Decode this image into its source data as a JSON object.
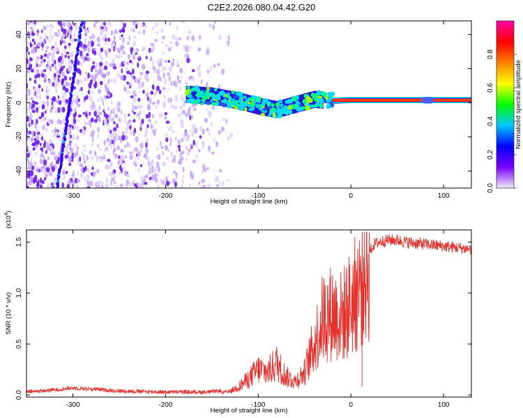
{
  "title": "C2E2.2026.080.04.42.G20",
  "chart_data": [
    {
      "type": "heatmap",
      "xlabel": "Height of straight line (km)",
      "ylabel": "Frequency (Hz)",
      "xlim": [
        -350,
        130
      ],
      "ylim": [
        -50,
        48
      ],
      "x_ticks": [
        -300,
        -200,
        -100,
        0,
        100
      ],
      "x_tick_labels": [
        "-300",
        "-200",
        "-100",
        "0",
        "100"
      ],
      "y_ticks": [
        -40,
        -20,
        0,
        20,
        40
      ],
      "y_tick_labels": [
        "-40",
        "-20",
        "0",
        "20",
        "40"
      ],
      "colorbar": {
        "label": "Normalized spectral amplitude",
        "range": [
          0.0,
          1.0
        ],
        "ticks": [
          0.0,
          0.2,
          0.4,
          0.6,
          0.8
        ],
        "tick_labels": [
          "0.0",
          "0.2",
          "0.4",
          "0.6",
          "0.8"
        ],
        "colors": [
          "#f2eaff",
          "#7b00ff",
          "#0000ff",
          "#00c8ff",
          "#00ff00",
          "#ffff00",
          "#ff8000",
          "#ff0000",
          "#ff00aa"
        ]
      },
      "features": {
        "noise_region_x": [
          -350,
          -140
        ],
        "streak": {
          "x_start": -317,
          "y_start": -50,
          "x_end": -290,
          "y_end": 48
        },
        "signal_trace": [
          {
            "x": -178,
            "y": 5
          },
          {
            "x": -150,
            "y": 4
          },
          {
            "x": -120,
            "y": 1
          },
          {
            "x": -100,
            "y": -2
          },
          {
            "x": -80,
            "y": -4
          },
          {
            "x": -60,
            "y": -1
          },
          {
            "x": -40,
            "y": 2
          },
          {
            "x": -20,
            "y": 1
          },
          {
            "x": 0,
            "y": 1.5
          },
          {
            "x": 50,
            "y": 1.5
          },
          {
            "x": 130,
            "y": 1.5
          }
        ]
      }
    },
    {
      "type": "line",
      "xlabel": "Height of straight line (km)",
      "ylabel": "SNR (10 * v/v)",
      "y_multiplier": "(x10",
      "y_multiplier_exp": "4",
      "y_multiplier_close": ")",
      "xlim": [
        -350,
        130
      ],
      "ylim": [
        -0.02,
        1.62
      ],
      "x_ticks": [
        -300,
        -200,
        -100,
        0,
        100
      ],
      "x_tick_labels": [
        "-300",
        "-200",
        "-100",
        "0",
        "100"
      ],
      "y_ticks": [
        0.0,
        0.5,
        1.0,
        1.5
      ],
      "y_tick_labels": [
        "0.0",
        "0.5",
        "1.0",
        "1.5"
      ],
      "series": [
        {
          "color": "#e8302a",
          "x": [
            -350,
            -320,
            -300,
            -280,
            -250,
            -200,
            -150,
            -130,
            -120,
            -110,
            -100,
            -90,
            -80,
            -70,
            -60,
            -50,
            -40,
            -30,
            -20,
            -10,
            0,
            10,
            15,
            20,
            25,
            30,
            40,
            50,
            60,
            70,
            80,
            90,
            100,
            110,
            120,
            130
          ],
          "y": [
            0.01,
            0.03,
            0.05,
            0.04,
            0.02,
            0.01,
            0.01,
            0.04,
            0.1,
            0.18,
            0.28,
            0.25,
            0.35,
            0.2,
            0.15,
            0.25,
            0.55,
            0.85,
            0.9,
            0.85,
            1.0,
            1.2,
            1.35,
            1.4,
            1.48,
            1.5,
            1.52,
            1.52,
            1.5,
            1.49,
            1.48,
            1.47,
            1.46,
            1.45,
            1.44,
            1.43
          ]
        }
      ]
    }
  ]
}
